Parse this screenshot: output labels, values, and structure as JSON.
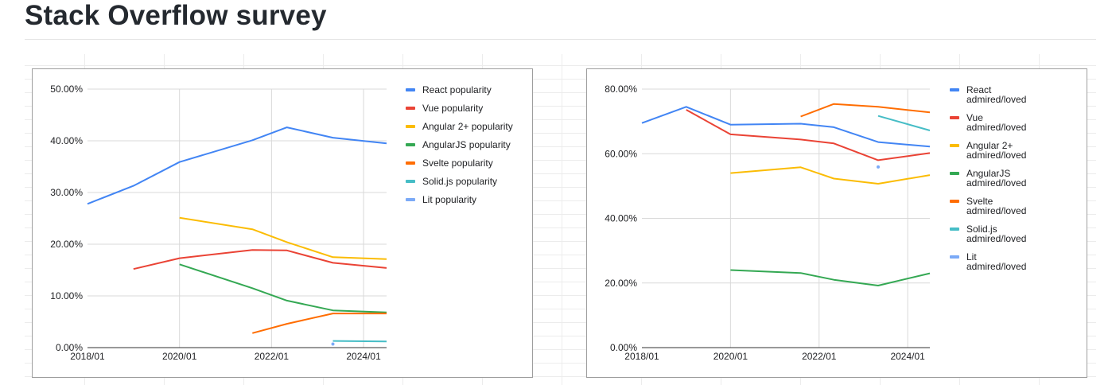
{
  "page": {
    "title": "Stack Overflow survey"
  },
  "chart_data": [
    {
      "type": "line",
      "x": [
        "2018/01",
        "2019/01",
        "2020/01",
        "2021/08",
        "2022/05",
        "2023/05",
        "2024/07"
      ],
      "xlim": [
        "2018/01",
        "2024/07"
      ],
      "x_ticks": [
        "2018/01",
        "2020/01",
        "2022/01",
        "2024/01"
      ],
      "y_ticks": [
        "0.00%",
        "10.00%",
        "20.00%",
        "30.00%",
        "40.00%",
        "50.00%"
      ],
      "ylim": [
        0,
        50
      ],
      "title": "",
      "xlabel": "",
      "ylabel": "",
      "legend_position": "right",
      "series": [
        {
          "name": "React popularity",
          "color": "#4285f4",
          "values": [
            27.8,
            31.3,
            35.9,
            40.1,
            42.6,
            40.6,
            39.5
          ]
        },
        {
          "name": "Vue popularity",
          "color": "#ea4335",
          "values": [
            null,
            15.2,
            17.3,
            18.9,
            18.8,
            16.4,
            15.4
          ]
        },
        {
          "name": "Angular 2+ popularity",
          "color": "#fbbc04",
          "values": [
            null,
            null,
            25.1,
            22.9,
            20.4,
            17.5,
            17.1
          ]
        },
        {
          "name": "AngularJS popularity",
          "color": "#34a853",
          "values": [
            null,
            null,
            16.1,
            11.5,
            9.1,
            7.2,
            6.8
          ]
        },
        {
          "name": "Svelte popularity",
          "color": "#ff6d01",
          "values": [
            null,
            null,
            null,
            2.8,
            4.6,
            6.6,
            6.6
          ]
        },
        {
          "name": "Solid.js popularity",
          "color": "#46bdc6",
          "values": [
            null,
            null,
            null,
            null,
            null,
            1.3,
            1.2
          ]
        },
        {
          "name": "Lit popularity",
          "color": "#7baaf7",
          "values": [
            null,
            null,
            null,
            null,
            null,
            0.7,
            null
          ]
        }
      ]
    },
    {
      "type": "line",
      "x": [
        "2018/01",
        "2019/01",
        "2020/01",
        "2021/08",
        "2022/05",
        "2023/05",
        "2024/07"
      ],
      "xlim": [
        "2018/01",
        "2024/07"
      ],
      "x_ticks": [
        "2018/01",
        "2020/01",
        "2022/01",
        "2024/01"
      ],
      "y_ticks": [
        "0.00%",
        "20.00%",
        "40.00%",
        "60.00%",
        "80.00%"
      ],
      "ylim": [
        0,
        80
      ],
      "title": "",
      "xlabel": "",
      "ylabel": "",
      "legend_position": "right",
      "series": [
        {
          "name": "React admired/loved",
          "color": "#4285f4",
          "values": [
            69.5,
            74.5,
            69.0,
            69.3,
            68.2,
            63.6,
            62.2
          ]
        },
        {
          "name": "Vue admired/loved",
          "color": "#ea4335",
          "values": [
            null,
            73.6,
            66.0,
            64.4,
            63.2,
            58.0,
            60.2
          ]
        },
        {
          "name": "Angular 2+ admired/loved",
          "color": "#fbbc04",
          "values": [
            null,
            null,
            54.0,
            55.8,
            52.3,
            50.7,
            53.4
          ]
        },
        {
          "name": "AngularJS admired/loved",
          "color": "#34a853",
          "values": [
            null,
            null,
            24.0,
            23.1,
            21.0,
            19.2,
            23.0
          ]
        },
        {
          "name": "Svelte admired/loved",
          "color": "#ff6d01",
          "values": [
            null,
            null,
            null,
            71.5,
            75.4,
            74.5,
            72.8
          ]
        },
        {
          "name": "Solid.js admired/loved",
          "color": "#46bdc6",
          "values": [
            null,
            null,
            null,
            null,
            null,
            71.7,
            67.2
          ]
        },
        {
          "name": "Lit admired/loved",
          "color": "#7baaf7",
          "values": [
            null,
            null,
            null,
            null,
            null,
            55.9,
            null
          ]
        }
      ]
    }
  ]
}
